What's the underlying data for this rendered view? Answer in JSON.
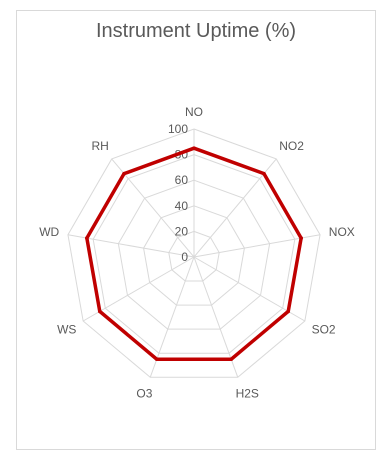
{
  "chart_data": {
    "type": "radar",
    "title": "Instrument Uptime (%)",
    "categories": [
      "NO",
      "NO2",
      "NOX",
      "SO2",
      "H2S",
      "O3",
      "WS",
      "WD",
      "RH"
    ],
    "values": [
      85,
      85,
      85,
      85,
      85,
      85,
      85,
      85,
      85
    ],
    "rlim": [
      0,
      100
    ],
    "ticks": [
      0,
      20,
      40,
      60,
      80,
      100
    ],
    "grid": true,
    "legend": "none",
    "series_color": "#c00000",
    "grid_color": "#d9d9d9"
  }
}
